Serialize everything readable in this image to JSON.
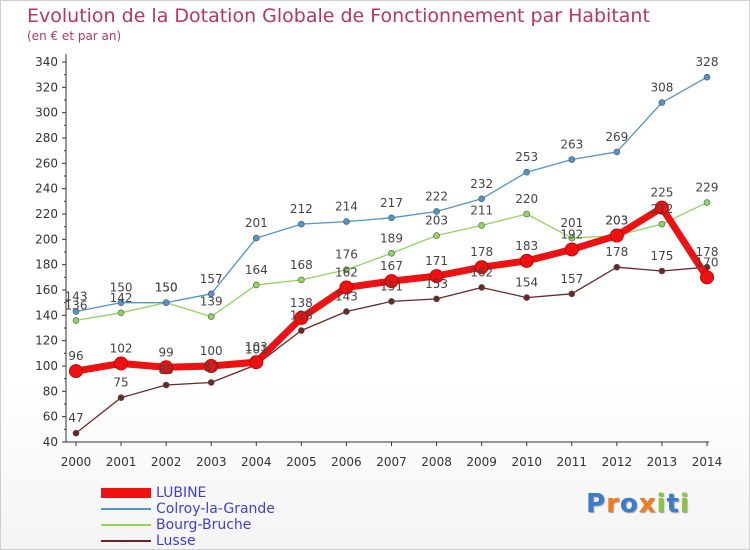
{
  "title": "Evolution de la Dotation Globale de Fonctionnement par Habitant",
  "subtitle": "(en € et par an)",
  "logo": {
    "text": "Proxiti",
    "colors": [
      "#3c7ccc",
      "#f07c1f",
      "#3c7ccc",
      "#f07c1f",
      "#8cc63f",
      "#3c7ccc",
      "#8cc63f"
    ]
  },
  "chart_data": {
    "type": "line",
    "title": "Evolution de la Dotation Globale de Fonctionnement par Habitant",
    "subtitle": "(en € et par an)",
    "x": [
      "2000",
      "2001",
      "2002",
      "2003",
      "2004",
      "2005",
      "2006",
      "2007",
      "2008",
      "2009",
      "2010",
      "2011",
      "2012",
      "2013",
      "2014"
    ],
    "ylim": [
      40,
      340
    ],
    "yticks": [
      40,
      60,
      80,
      100,
      120,
      140,
      160,
      180,
      200,
      220,
      240,
      260,
      280,
      300,
      320,
      340
    ],
    "grid": false,
    "legend_position": "bottom-left",
    "series": [
      {
        "name": "LUBINE",
        "color": "#ee1111",
        "values": [
          96,
          102,
          99,
          100,
          103,
          138,
          162,
          167,
          171,
          178,
          183,
          192,
          203,
          225,
          170
        ],
        "labels": [
          "96",
          "102",
          "99",
          "100",
          "103",
          "138",
          "162",
          "167",
          "171",
          "178",
          "183",
          "192",
          "203",
          "225",
          "170"
        ]
      },
      {
        "name": "Colroy-la-Grande",
        "color": "#4f94cd",
        "values": [
          143,
          150,
          150,
          157,
          201,
          212,
          214,
          217,
          222,
          232,
          253,
          263,
          269,
          308,
          328
        ],
        "labels": [
          "143",
          "150",
          "150",
          "157",
          "201",
          "212",
          "214",
          "217",
          "222",
          "232",
          "253",
          "263",
          "269",
          "308",
          "328"
        ]
      },
      {
        "name": "Bourg-Bruche",
        "color": "#8ed65c",
        "values": [
          136,
          142,
          150,
          139,
          164,
          168,
          176,
          189,
          203,
          211,
          220,
          201,
          203,
          212,
          229
        ],
        "labels": [
          "136",
          "142",
          "150",
          "139",
          "164",
          "168",
          "176",
          "189",
          "203",
          "211",
          "220",
          "201",
          "203",
          "212",
          "229"
        ]
      },
      {
        "name": "Lusse",
        "color": "#6b2626",
        "values": [
          47,
          75,
          85,
          87,
          101,
          128,
          143,
          151,
          153,
          162,
          154,
          157,
          178,
          175,
          178
        ],
        "labels": [
          "47",
          "75",
          "85",
          "87",
          "101",
          "128",
          "143",
          "151",
          "153",
          "162",
          "154",
          "157",
          "178",
          "175",
          "178"
        ]
      }
    ]
  }
}
